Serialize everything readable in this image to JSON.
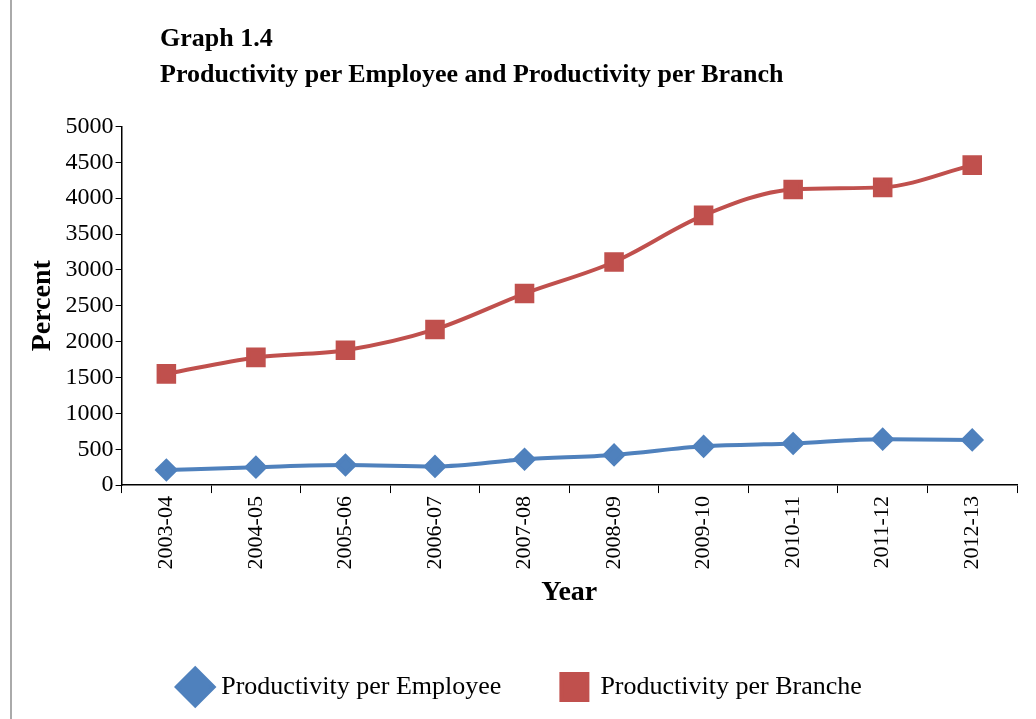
{
  "chart_data": {
    "type": "line",
    "title": "Graph 1.4",
    "subtitle": "Productivity per Employee and Productivity per Branch",
    "xlabel": "Year",
    "ylabel": "Percent",
    "categories": [
      "2003-04",
      "2004-05",
      "2005-06",
      "2006-07",
      "2007-08",
      "2008-09",
      "2009-10",
      "2010-11",
      "2011-12",
      "2012-13"
    ],
    "series": [
      {
        "name": "Productivity per Employee",
        "color": "#4f81bd",
        "marker": "diamond",
        "values": [
          210,
          250,
          280,
          260,
          360,
          420,
          540,
          580,
          640,
          630
        ]
      },
      {
        "name": "Productivity per Branche",
        "color": "#c0504d",
        "marker": "square",
        "values": [
          1550,
          1780,
          1880,
          2170,
          2670,
          3110,
          3760,
          4120,
          4150,
          4460
        ]
      }
    ],
    "ylim": [
      0,
      5000
    ],
    "yticks": [
      0,
      500,
      1000,
      1500,
      2000,
      2500,
      3000,
      3500,
      4000,
      4500,
      5000
    ],
    "grid": false,
    "legend": "bottom"
  }
}
